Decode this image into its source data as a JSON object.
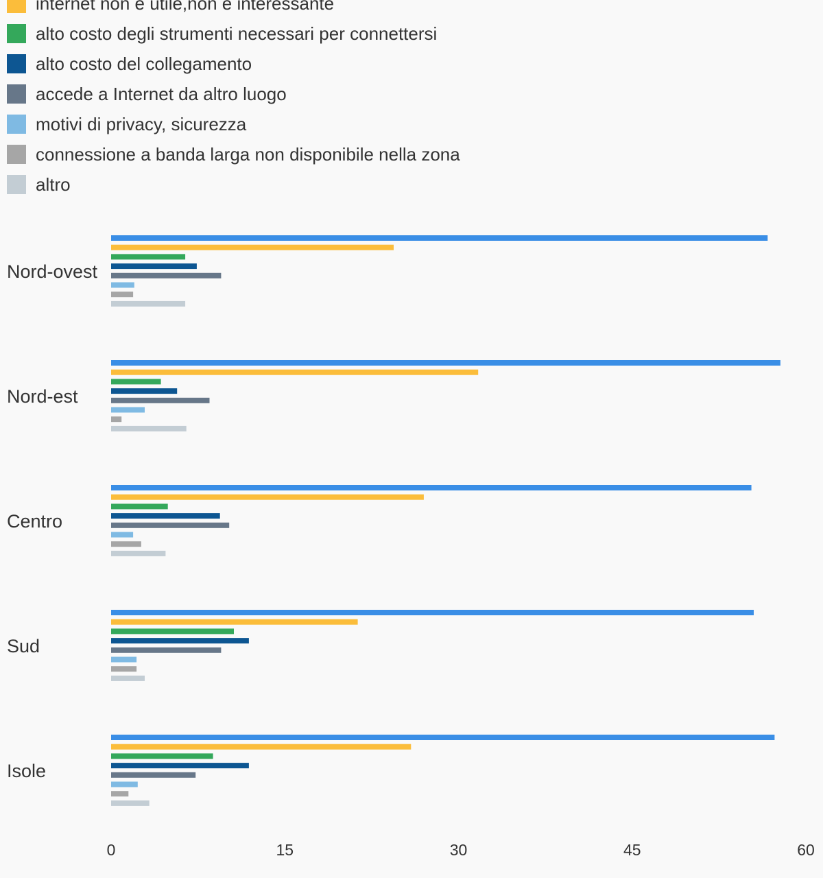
{
  "chart_data": {
    "type": "bar",
    "orientation": "horizontal",
    "categories": [
      "Nord-ovest",
      "Nord-est",
      "Centro",
      "Sud",
      "Isole"
    ],
    "series": [
      {
        "name": "",
        "color": "#3a8ee6",
        "values": [
          56.7,
          57.8,
          55.3,
          55.5,
          57.3
        ]
      },
      {
        "name": "internet non è utile,non è interessante",
        "color": "#fbbd3b",
        "values": [
          24.4,
          31.7,
          27.0,
          21.3,
          25.9
        ]
      },
      {
        "name": "alto costo degli strumenti necessari per connettersi",
        "color": "#34a85b",
        "values": [
          6.4,
          4.3,
          4.9,
          10.6,
          8.8
        ]
      },
      {
        "name": "alto costo del collegamento",
        "color": "#0d5692",
        "values": [
          7.4,
          5.7,
          9.4,
          11.9,
          11.9
        ]
      },
      {
        "name": "accede a Internet da altro luogo",
        "color": "#677789",
        "values": [
          9.5,
          8.5,
          10.2,
          9.5,
          7.3
        ]
      },
      {
        "name": "motivi di privacy, sicurezza",
        "color": "#7fbae3",
        "values": [
          2.0,
          2.9,
          1.9,
          2.2,
          2.3
        ]
      },
      {
        "name": "connessione a banda larga non disponibile nella zona",
        "color": "#a6a6a6",
        "values": [
          1.9,
          0.9,
          2.6,
          2.2,
          1.5
        ]
      },
      {
        "name": "altro",
        "color": "#c3cdd4",
        "values": [
          6.4,
          6.5,
          4.7,
          2.9,
          3.3
        ]
      }
    ],
    "xlim": [
      0,
      60
    ],
    "xticks": [
      "0",
      "15",
      "30",
      "45",
      "60"
    ],
    "grid": false,
    "legend_position": "top-left"
  }
}
